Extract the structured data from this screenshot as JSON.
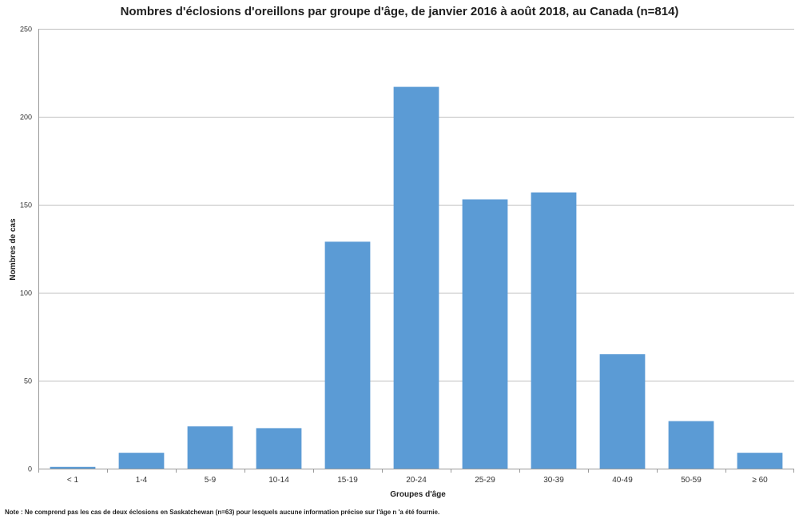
{
  "chart_data": {
    "type": "bar",
    "title": "Nombres d'éclosions d'oreillons par groupe d'âge, de janvier 2016 à août 2018, au Canada (n=814)",
    "xlabel": "Groupes  d'âge",
    "ylabel": "Nombres de cas",
    "categories": [
      "< 1",
      "1-4",
      "5-9",
      "10-14",
      "15-19",
      "20-24",
      "25-29",
      "30-39",
      "40-49",
      "50-59",
      "≥ 60"
    ],
    "values": [
      1,
      9,
      24,
      23,
      129,
      217,
      153,
      157,
      65,
      27,
      9
    ],
    "ylim": [
      0,
      250
    ],
    "yticks": [
      0,
      50,
      100,
      150,
      200,
      250
    ],
    "grid": true,
    "bar_color": "#5b9bd5",
    "grid_color": "#c0c0c0",
    "note": "Note : Ne comprend pas les cas de deux éclosions en Saskatchewan (n=63) pour lesquels aucune information  précise sur l'âge n 'a été fournie."
  }
}
